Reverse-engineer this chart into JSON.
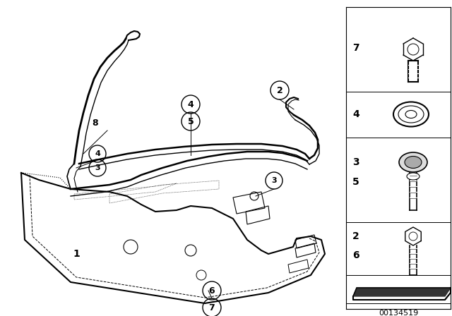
{
  "bg_color": "#ffffff",
  "line_color": "#000000",
  "fig_width": 6.4,
  "fig_height": 4.48,
  "dpi": 100,
  "diagram_id": "00134519"
}
